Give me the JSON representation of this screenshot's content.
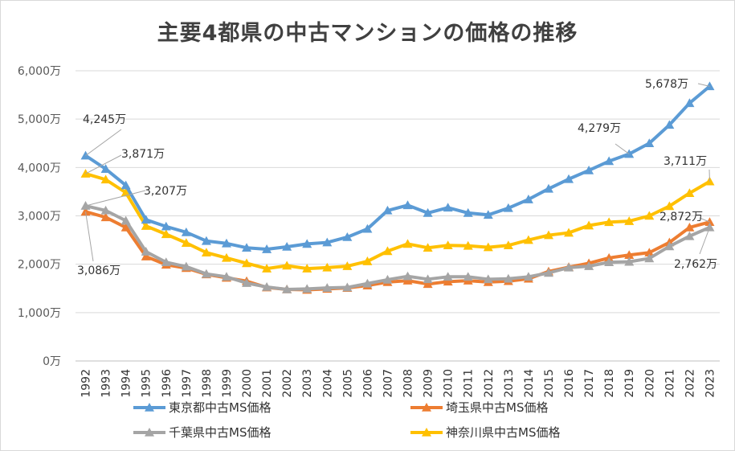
{
  "chart_data": {
    "type": "line",
    "title": "主要4都県の中古マンションの価格の推移",
    "xlabel": "",
    "ylabel": "",
    "ylim": [
      0,
      6000
    ],
    "yticks": [
      0,
      1000,
      2000,
      3000,
      4000,
      5000,
      6000
    ],
    "ytick_labels": [
      "0万",
      "1,000万",
      "2,000万",
      "3,000万",
      "4,000万",
      "5,000万",
      "6,000万"
    ],
    "grid": true,
    "legend_position": "bottom",
    "categories": [
      "1992",
      "1993",
      "1994",
      "1995",
      "1996",
      "1997",
      "1998",
      "1999",
      "2000",
      "2001",
      "2002",
      "2003",
      "2004",
      "2005",
      "2006",
      "2007",
      "2008",
      "2009",
      "2010",
      "2011",
      "2012",
      "2013",
      "2014",
      "2015",
      "2016",
      "2017",
      "2018",
      "2019",
      "2020",
      "2021",
      "2022",
      "2023"
    ],
    "series": [
      {
        "name": "東京都中古MS価格",
        "color": "#5b9bd5",
        "values": [
          4245,
          3970,
          3630,
          2920,
          2780,
          2660,
          2480,
          2430,
          2340,
          2310,
          2360,
          2420,
          2450,
          2560,
          2730,
          3110,
          3220,
          3060,
          3170,
          3060,
          3020,
          3160,
          3340,
          3560,
          3760,
          3940,
          4130,
          4279,
          4500,
          4880,
          5330,
          5678
        ]
      },
      {
        "name": "埼玉県中古MS価格",
        "color": "#ed7d31",
        "values": [
          3086,
          2970,
          2760,
          2160,
          1990,
          1920,
          1790,
          1720,
          1650,
          1520,
          1480,
          1470,
          1490,
          1510,
          1560,
          1630,
          1660,
          1590,
          1640,
          1660,
          1630,
          1650,
          1700,
          1850,
          1940,
          2020,
          2130,
          2190,
          2240,
          2450,
          2760,
          2872
        ]
      },
      {
        "name": "千葉県中古MS価格",
        "color": "#a5a5a5",
        "values": [
          3207,
          3110,
          2900,
          2260,
          2040,
          1950,
          1800,
          1740,
          1610,
          1530,
          1480,
          1490,
          1510,
          1520,
          1600,
          1680,
          1750,
          1690,
          1740,
          1740,
          1690,
          1700,
          1740,
          1820,
          1930,
          1960,
          2040,
          2050,
          2120,
          2370,
          2580,
          2762
        ]
      },
      {
        "name": "神奈川県中古MS価格",
        "color": "#ffc000",
        "values": [
          3871,
          3750,
          3480,
          2790,
          2620,
          2440,
          2240,
          2130,
          2020,
          1910,
          1970,
          1910,
          1930,
          1960,
          2060,
          2270,
          2420,
          2340,
          2390,
          2380,
          2350,
          2390,
          2500,
          2600,
          2650,
          2800,
          2870,
          2890,
          3000,
          3200,
          3470,
          3711
        ]
      }
    ],
    "annotations": [
      {
        "series": 0,
        "index": 0,
        "text": "4,245万"
      },
      {
        "series": 3,
        "index": 0,
        "text": "3,871万"
      },
      {
        "series": 2,
        "index": 0,
        "text": "3,207万"
      },
      {
        "series": 1,
        "index": 0,
        "text": "3,086万"
      },
      {
        "series": 0,
        "index": 27,
        "text": "4,279万"
      },
      {
        "series": 0,
        "index": 31,
        "text": "5,678万"
      },
      {
        "series": 3,
        "index": 31,
        "text": "3,711万"
      },
      {
        "series": 1,
        "index": 31,
        "text": "2,872万"
      },
      {
        "series": 2,
        "index": 31,
        "text": "2,762万"
      }
    ]
  }
}
